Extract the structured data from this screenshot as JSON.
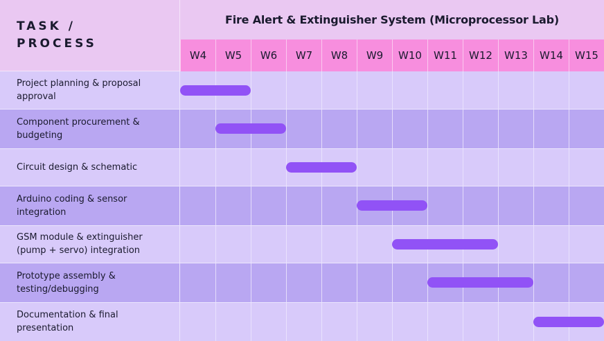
{
  "header": {
    "corner_label": "TASK / PROCESS",
    "title": "Fire Alert & Extinguisher System (Microprocessor Lab)"
  },
  "weeks": [
    "W4",
    "W5",
    "W6",
    "W7",
    "W8",
    "W9",
    "W10",
    "W11",
    "W12",
    "W13",
    "W14",
    "W15"
  ],
  "tasks": [
    {
      "label": "Project planning & proposal approval",
      "start": "W4",
      "end": "W5"
    },
    {
      "label": "Component procurement & budgeting",
      "start": "W5",
      "end": "W6"
    },
    {
      "label": "Circuit design & schematic",
      "start": "W7",
      "end": "W8"
    },
    {
      "label": "Arduino coding & sensor integration",
      "start": "W9",
      "end": "W10"
    },
    {
      "label": "GSM module & extinguisher (pump + servo) integration",
      "start": "W10",
      "end": "W12"
    },
    {
      "label": "Prototype assembly & testing/debugging",
      "start": "W11",
      "end": "W13"
    },
    {
      "label": "Documentation & final presentation",
      "start": "W14",
      "end": "W15"
    }
  ],
  "colors": {
    "header_bg": "#eac8f2",
    "week_header_bg": "#f78ede",
    "row_light": "#d8cafa",
    "row_dark": "#b9a7f2",
    "bar": "#9152f6"
  }
}
